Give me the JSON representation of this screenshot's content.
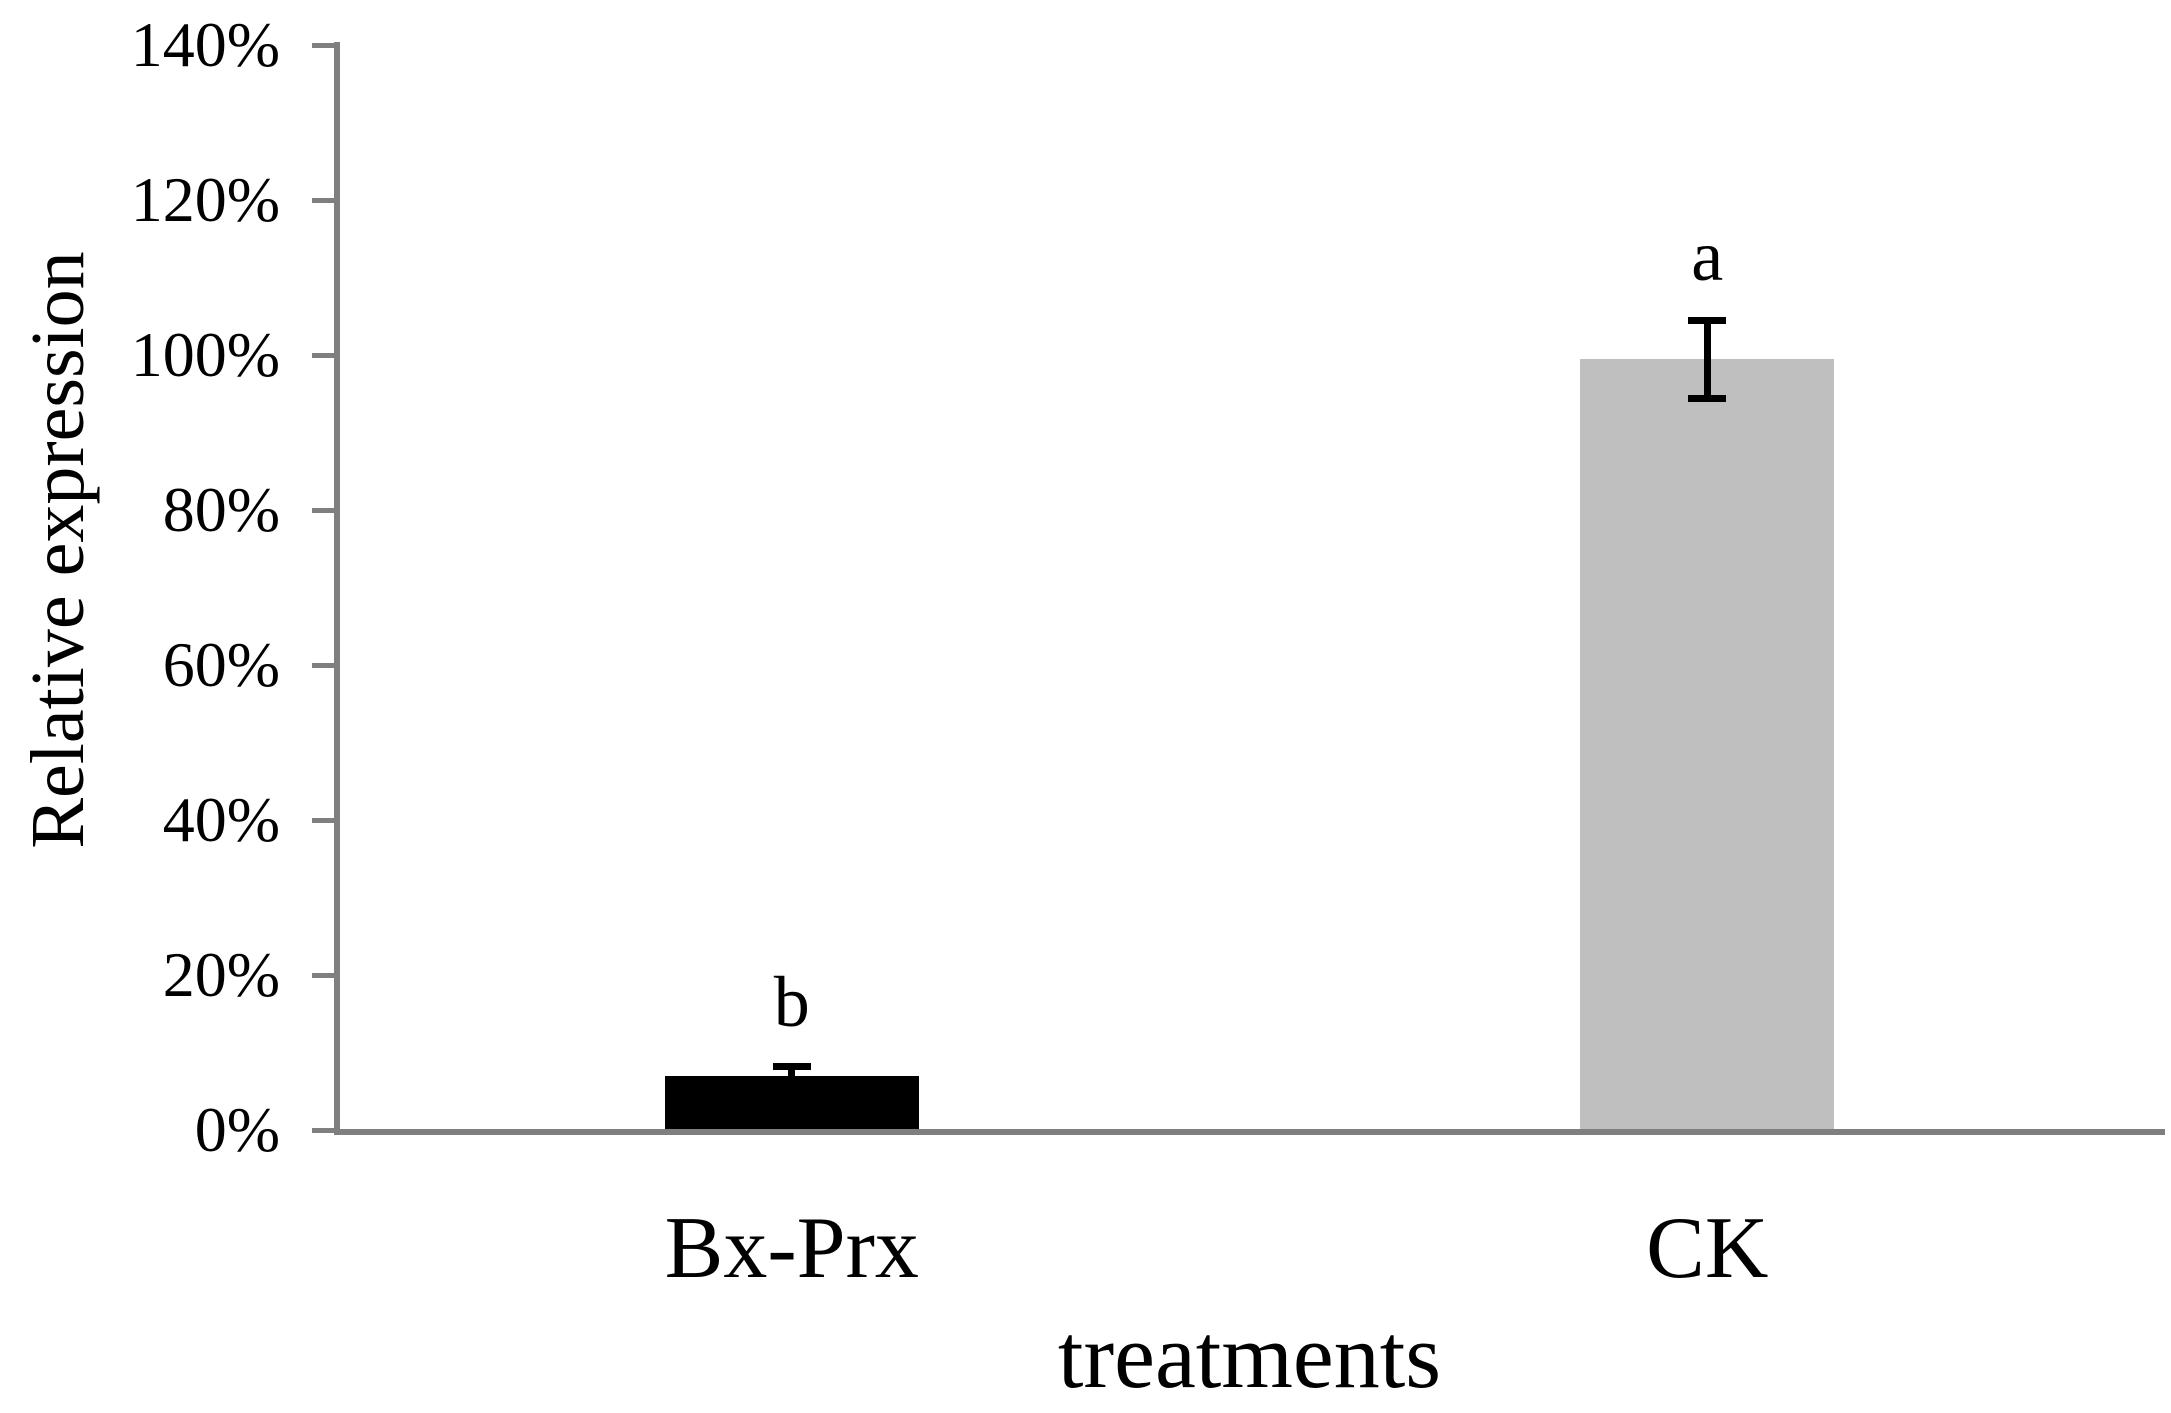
{
  "figure": {
    "background_color": "#ffffff",
    "text_color": "#000000"
  },
  "chart_data": {
    "type": "bar",
    "title": "",
    "xlabel": "treatments",
    "ylabel": "Relative expression",
    "categories": [
      "Bx-Prx",
      "CK"
    ],
    "values": [
      7,
      99.5
    ],
    "errors": [
      1.3,
      5
    ],
    "significance_letters": [
      "b",
      "a"
    ],
    "bar_colors": [
      "#000000",
      "#bfbfbf"
    ],
    "error_bar_color": "#000000",
    "axis_color": "#7f7f7f",
    "ylim": [
      0,
      140
    ],
    "ytick_values": [
      0,
      20,
      40,
      60,
      80,
      100,
      120,
      140
    ],
    "ytick_labels": [
      "0%",
      "20%",
      "40%",
      "60%",
      "80%",
      "100%",
      "120%",
      "140%"
    ],
    "grid": false,
    "legend": "none"
  }
}
